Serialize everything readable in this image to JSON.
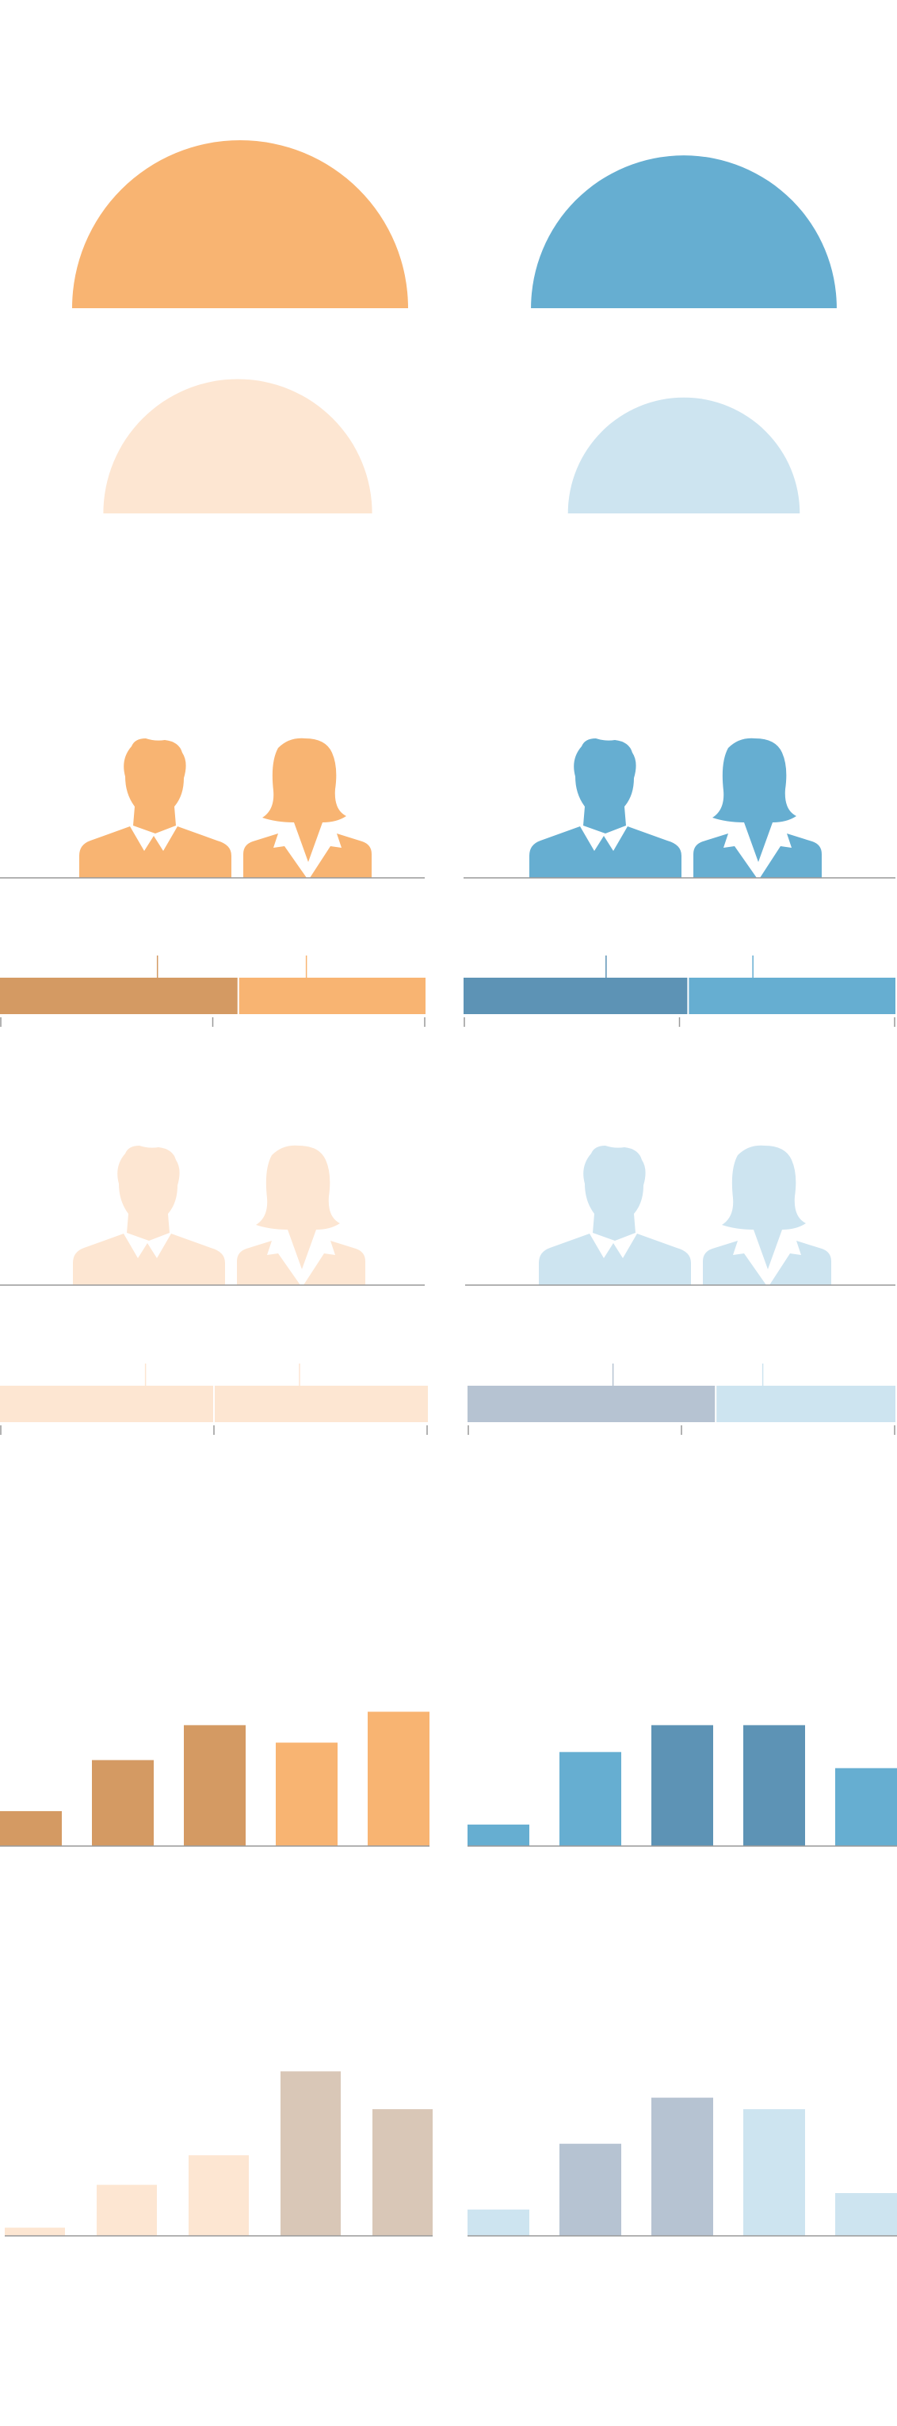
{
  "palette": {
    "orange": "#f8b472",
    "orange_dark": "#d49a63",
    "orange_light": "#fde6d2",
    "orange_grey": "#d9c7b7",
    "blue": "#66aed1",
    "blue_dark": "#5d93b5",
    "blue_light": "#cde4f0",
    "blue_grey": "#b6c3d2",
    "axis": "#999999"
  },
  "chart_data": [
    {
      "type": "pie",
      "id": "semicircles",
      "note_groups": [
        "orange",
        "blue"
      ],
      "series": [
        {
          "group": "orange",
          "level": "dark",
          "relative_size": 1.0
        },
        {
          "group": "blue",
          "level": "dark",
          "relative_size": 0.91
        },
        {
          "group": "orange",
          "level": "light",
          "relative_size": 0.8
        },
        {
          "group": "blue",
          "level": "light",
          "relative_size": 0.69
        }
      ]
    },
    {
      "type": "bar",
      "id": "stacked-orange-dark",
      "orientation": "horizontal-stacked",
      "series": [
        {
          "color": "orange_dark",
          "value": 56
        },
        {
          "color": "orange",
          "value": 44
        }
      ],
      "markers": [
        37,
        72
      ],
      "xlim": [
        0,
        100
      ]
    },
    {
      "type": "bar",
      "id": "stacked-blue-dark",
      "orientation": "horizontal-stacked",
      "series": [
        {
          "color": "blue_dark",
          "value": 52
        },
        {
          "color": "blue",
          "value": 48
        }
      ],
      "markers": [
        33,
        67
      ],
      "xlim": [
        0,
        100
      ]
    },
    {
      "type": "bar",
      "id": "stacked-orange-light",
      "orientation": "horizontal-stacked",
      "series": [
        {
          "color": "orange_light",
          "value": 50
        },
        {
          "color": "orange_light",
          "value": 50
        }
      ],
      "markers": [
        34,
        70
      ],
      "xlim": [
        0,
        100
      ]
    },
    {
      "type": "bar",
      "id": "stacked-blue-light",
      "orientation": "horizontal-stacked",
      "series": [
        {
          "color": "blue_grey",
          "value": 58
        },
        {
          "color": "blue_light",
          "value": 42
        }
      ],
      "markers": [
        34,
        69
      ],
      "xlim": [
        0,
        100
      ]
    },
    {
      "type": "bar",
      "id": "columns-orange",
      "categories": [
        "",
        "",
        "",
        "",
        ""
      ],
      "values": [
        2.6,
        6.4,
        9.0,
        7.7,
        10.0
      ],
      "colors": [
        "orange_dark",
        "orange_dark",
        "orange_dark",
        "orange",
        "orange"
      ],
      "ylim": [
        0,
        10.5
      ]
    },
    {
      "type": "bar",
      "id": "columns-blue",
      "categories": [
        "",
        "",
        "",
        "",
        ""
      ],
      "values": [
        1.6,
        7.0,
        9.0,
        9.0,
        5.8
      ],
      "colors": [
        "blue",
        "blue",
        "blue_dark",
        "blue_dark",
        "blue"
      ],
      "ylim": [
        0,
        10.5
      ]
    },
    {
      "type": "bar",
      "id": "columns-orange-light",
      "categories": [
        "",
        "",
        "",
        "",
        ""
      ],
      "values": [
        0.5,
        3.1,
        4.9,
        10.0,
        7.7
      ],
      "colors": [
        "orange_light",
        "orange_light",
        "orange_light",
        "orange_grey",
        "orange_grey"
      ],
      "ylim": [
        0,
        10.5
      ]
    },
    {
      "type": "bar",
      "id": "columns-blue-light",
      "categories": [
        "",
        "",
        "",
        "",
        ""
      ],
      "values": [
        1.6,
        5.6,
        8.4,
        7.7,
        2.6
      ],
      "colors": [
        "blue_light",
        "blue_grey",
        "blue_grey",
        "blue_light",
        "blue_light"
      ],
      "ylim": [
        0,
        10.5
      ]
    }
  ],
  "people_groups": [
    {
      "id": "people-orange",
      "color": "orange"
    },
    {
      "id": "people-blue",
      "color": "blue"
    },
    {
      "id": "people-orange-light",
      "color": "orange_light"
    },
    {
      "id": "people-blue-light",
      "color": "blue_light"
    }
  ]
}
